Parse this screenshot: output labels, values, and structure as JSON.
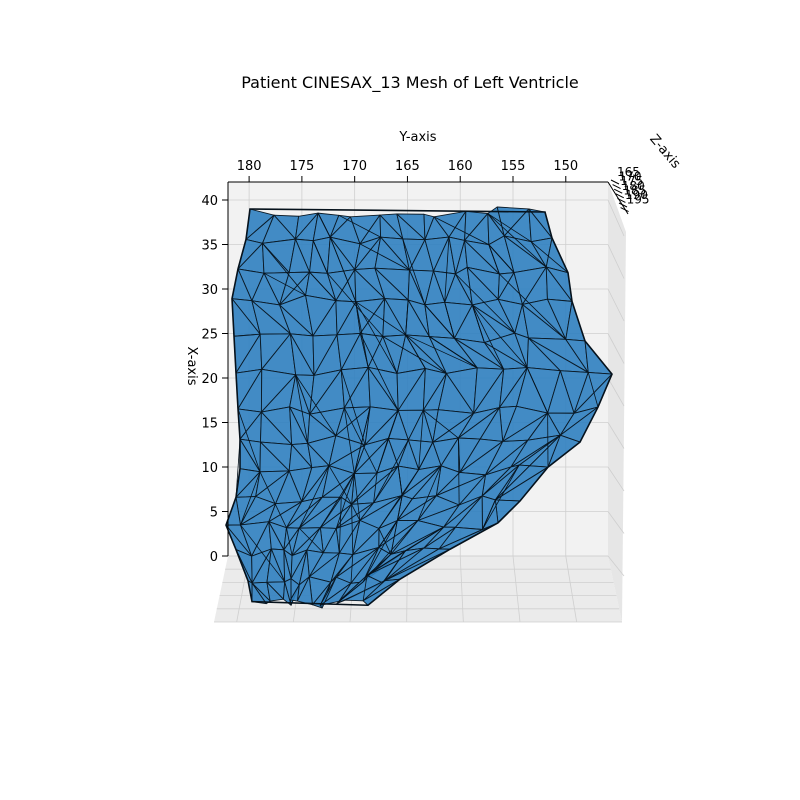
{
  "chart_data": {
    "type": "mesh3d",
    "title": "Patient CINESAX_13 Mesh of Left Ventricle",
    "xlabel": "X-axis",
    "ylabel": "Y-axis",
    "zlabel": "Z-axis",
    "x_ticks": [
      "0",
      "5",
      "10",
      "15",
      "20",
      "25",
      "30",
      "35",
      "40"
    ],
    "y_ticks": [
      "180",
      "175",
      "170",
      "165",
      "160",
      "155",
      "150"
    ],
    "z_ticks": [
      "165",
      "170",
      "175",
      "180",
      "185",
      "190",
      "195"
    ],
    "xlim": [
      0,
      40
    ],
    "ylim": [
      182,
      146
    ],
    "zlim": [
      165,
      195
    ],
    "grid": true,
    "colors": {
      "face": "#2f7fc0",
      "edge": "#0b1a26",
      "pane": "#f2f2f2",
      "grid": "#cfcfcf"
    }
  }
}
